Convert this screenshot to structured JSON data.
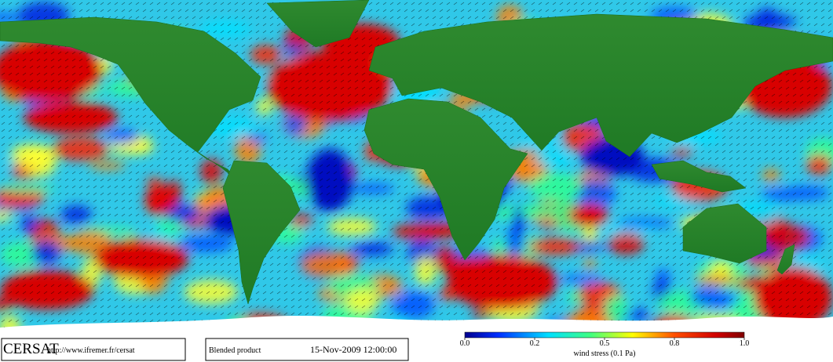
{
  "logo": "CERSAT",
  "url": "http://www.ifremer.fr/cersat",
  "product": "Blended product",
  "date": "15-Nov-2009 12:00:00",
  "colorbar": {
    "label": "wind stress (0.1 Pa)",
    "ticks": [
      {
        "value": 0,
        "label": "0.0"
      },
      {
        "value": 0.2,
        "label": "0.2"
      },
      {
        "value": 0.5,
        "label": "0.5"
      },
      {
        "value": 0.8,
        "label": "0.8"
      },
      {
        "value": 1,
        "label": "1.0"
      }
    ]
  }
}
